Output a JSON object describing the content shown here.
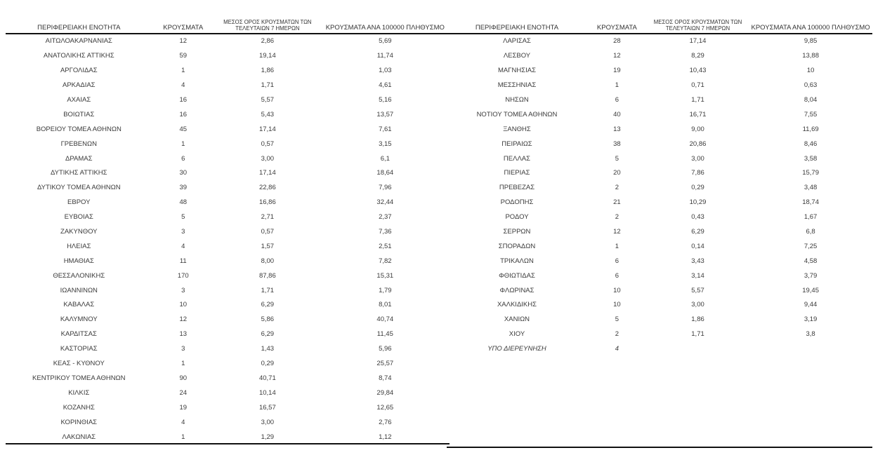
{
  "document": {
    "background": "#ffffff",
    "text_color": "#3a3a3a",
    "rule_color": "#111111"
  },
  "columns": {
    "region": "ΠΕΡΙΦΕΡΕΙΑΚΗ ΕΝΟΤΗΤΑ",
    "cases": "ΚΡΟΥΣΜΑΤΑ",
    "avg7_line1": "ΜΕΣΟΣ ΟΡΟΣ ΚΡΟΥΣΜΑΤΩΝ ΤΩΝ",
    "avg7_line2": "ΤΕΛΕΥΤΑΙΩΝ 7 ΗΜΕΡΩΝ",
    "per100k": "ΚΡΟΥΣΜΑΤΑ ΑΝΑ 100000 ΠΛΗΘΥΣΜΟ"
  },
  "tables": [
    {
      "id": "left",
      "italic_rows": [],
      "rows": [
        [
          "ΑΙΤΩΛΟΑΚΑΡΝΑΝΙΑΣ",
          "12",
          "2,86",
          "5,69"
        ],
        [
          "ΑΝΑΤΟΛΙΚΗΣ ΑΤΤΙΚΗΣ",
          "59",
          "19,14",
          "11,74"
        ],
        [
          "ΑΡΓΟΛΙΔΑΣ",
          "1",
          "1,86",
          "1,03"
        ],
        [
          "ΑΡΚΑΔΙΑΣ",
          "4",
          "1,71",
          "4,61"
        ],
        [
          "ΑΧΑΪΑΣ",
          "16",
          "5,57",
          "5,16"
        ],
        [
          "ΒΟΙΩΤΙΑΣ",
          "16",
          "5,43",
          "13,57"
        ],
        [
          "ΒΟΡΕΙΟΥ ΤΟΜΕΑ ΑΘΗΝΩΝ",
          "45",
          "17,14",
          "7,61"
        ],
        [
          "ΓΡΕΒΕΝΩΝ",
          "1",
          "0,57",
          "3,15"
        ],
        [
          "ΔΡΑΜΑΣ",
          "6",
          "3,00",
          "6,1"
        ],
        [
          "ΔΥΤΙΚΗΣ ΑΤΤΙΚΗΣ",
          "30",
          "17,14",
          "18,64"
        ],
        [
          "ΔΥΤΙΚΟΥ ΤΟΜΕΑ ΑΘΗΝΩΝ",
          "39",
          "22,86",
          "7,96"
        ],
        [
          "ΕΒΡΟΥ",
          "48",
          "16,86",
          "32,44"
        ],
        [
          "ΕΥΒΟΙΑΣ",
          "5",
          "2,71",
          "2,37"
        ],
        [
          "ΖΑΚΥΝΘΟΥ",
          "3",
          "0,57",
          "7,36"
        ],
        [
          "ΗΛΕΙΑΣ",
          "4",
          "1,57",
          "2,51"
        ],
        [
          "ΗΜΑΘΙΑΣ",
          "11",
          "8,00",
          "7,82"
        ],
        [
          "ΘΕΣΣΑΛΟΝΙΚΗΣ",
          "170",
          "87,86",
          "15,31"
        ],
        [
          "ΙΩΑΝΝΙΝΩΝ",
          "3",
          "1,71",
          "1,79"
        ],
        [
          "ΚΑΒΑΛΑΣ",
          "10",
          "6,29",
          "8,01"
        ],
        [
          "ΚΑΛΥΜΝΟΥ",
          "12",
          "5,86",
          "40,74"
        ],
        [
          "ΚΑΡΔΙΤΣΑΣ",
          "13",
          "6,29",
          "11,45"
        ],
        [
          "ΚΑΣΤΟΡΙΑΣ",
          "3",
          "1,43",
          "5,96"
        ],
        [
          "ΚΕΑΣ - ΚΥΘΝΟΥ",
          "1",
          "0,29",
          "25,57"
        ],
        [
          "ΚΕΝΤΡΙΚΟΥ ΤΟΜΕΑ ΑΘΗΝΩΝ",
          "90",
          "40,71",
          "8,74"
        ],
        [
          "ΚΙΛΚΙΣ",
          "24",
          "10,14",
          "29,84"
        ],
        [
          "ΚΟΖΑΝΗΣ",
          "19",
          "16,57",
          "12,65"
        ],
        [
          "ΚΟΡΙΝΘΙΑΣ",
          "4",
          "3,00",
          "2,76"
        ],
        [
          "ΛΑΚΩΝΙΑΣ",
          "1",
          "1,29",
          "1,12"
        ]
      ]
    },
    {
      "id": "right",
      "italic_rows": [
        21
      ],
      "rows": [
        [
          "ΛΑΡΙΣΑΣ",
          "28",
          "17,14",
          "9,85"
        ],
        [
          "ΛΕΣΒΟΥ",
          "12",
          "8,29",
          "13,88"
        ],
        [
          "ΜΑΓΝΗΣΙΑΣ",
          "19",
          "10,43",
          "10"
        ],
        [
          "ΜΕΣΣΗΝΙΑΣ",
          "1",
          "0,71",
          "0,63"
        ],
        [
          "ΝΗΣΩΝ",
          "6",
          "1,71",
          "8,04"
        ],
        [
          "ΝΟΤΙΟΥ ΤΟΜΕΑ ΑΘΗΝΩΝ",
          "40",
          "16,71",
          "7,55"
        ],
        [
          "ΞΑΝΘΗΣ",
          "13",
          "9,00",
          "11,69"
        ],
        [
          "ΠΕΙΡΑΙΩΣ",
          "38",
          "20,86",
          "8,46"
        ],
        [
          "ΠΕΛΛΑΣ",
          "5",
          "3,00",
          "3,58"
        ],
        [
          "ΠΙΕΡΙΑΣ",
          "20",
          "7,86",
          "15,79"
        ],
        [
          "ΠΡΕΒΕΖΑΣ",
          "2",
          "0,29",
          "3,48"
        ],
        [
          "ΡΟΔΟΠΗΣ",
          "21",
          "10,29",
          "18,74"
        ],
        [
          "ΡΟΔΟΥ",
          "2",
          "0,43",
          "1,67"
        ],
        [
          "ΣΕΡΡΩΝ",
          "12",
          "6,29",
          "6,8"
        ],
        [
          "ΣΠΟΡΑΔΩΝ",
          "1",
          "0,14",
          "7,25"
        ],
        [
          "ΤΡΙΚΑΛΩΝ",
          "6",
          "3,43",
          "4,58"
        ],
        [
          "ΦΘΙΩΤΙΔΑΣ",
          "6",
          "3,14",
          "3,79"
        ],
        [
          "ΦΛΩΡΙΝΑΣ",
          "10",
          "5,57",
          "19,45"
        ],
        [
          "ΧΑΛΚΙΔΙΚΗΣ",
          "10",
          "3,00",
          "9,44"
        ],
        [
          "ΧΑΝΙΩΝ",
          "5",
          "1,86",
          "3,19"
        ],
        [
          "ΧΙΟΥ",
          "2",
          "1,71",
          "3,8"
        ],
        [
          "ΥΠΟ ΔΙΕΡΕΥΝΗΣΗ",
          "4",
          "",
          ""
        ]
      ]
    }
  ]
}
